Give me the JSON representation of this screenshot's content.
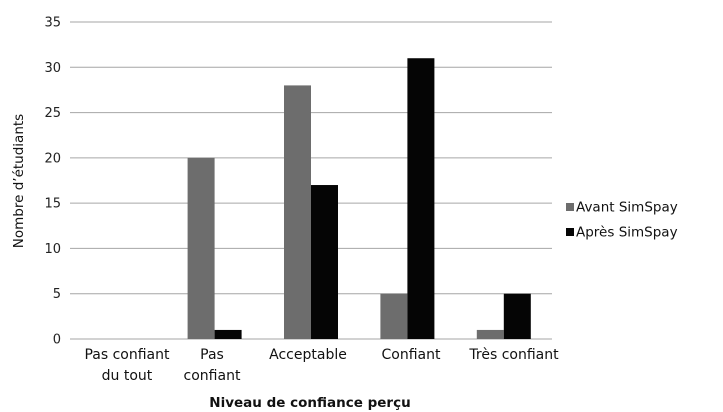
{
  "chart_data": {
    "type": "bar",
    "title": "",
    "xlabel": "Niveau de confiance perçu",
    "ylabel": "Nombre d’étudiants",
    "categories": [
      [
        "Pas confiant",
        "du tout"
      ],
      [
        "Pas",
        "confiant"
      ],
      [
        "Acceptable"
      ],
      [
        "Confiant"
      ],
      [
        "Très confiant"
      ]
    ],
    "series": [
      {
        "name": "Avant SimSpay",
        "color": "#6d6d6d",
        "values": [
          0,
          20,
          28,
          5,
          1
        ]
      },
      {
        "name": "Après SimSpay",
        "color": "#050505",
        "values": [
          0,
          1,
          17,
          31,
          5
        ]
      }
    ],
    "ylim": [
      0,
      35
    ],
    "yticks": [
      0,
      5,
      10,
      15,
      20,
      25,
      30,
      35
    ],
    "grid": true,
    "legend_position": "right"
  }
}
